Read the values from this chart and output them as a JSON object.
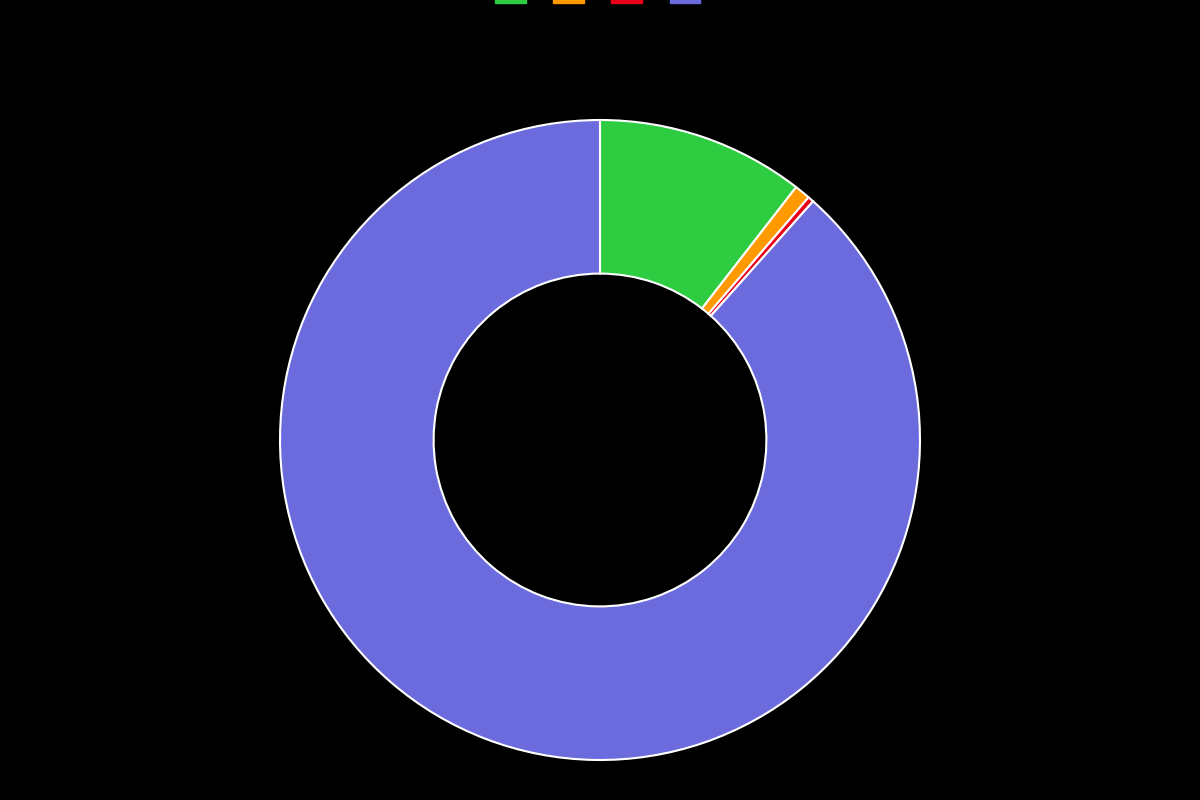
{
  "values": [
    10.5,
    0.8,
    0.3,
    88.4
  ],
  "colors": [
    "#2ecc40",
    "#ff9900",
    "#e8001a",
    "#6b6bde"
  ],
  "legend_labels": [
    "",
    "",
    "",
    ""
  ],
  "background_color": "#000000",
  "wedge_edge_color": "#ffffff",
  "wedge_linewidth": 1.5,
  "donut_width": 0.48,
  "startangle": 90,
  "figsize": [
    12,
    8
  ],
  "dpi": 100
}
